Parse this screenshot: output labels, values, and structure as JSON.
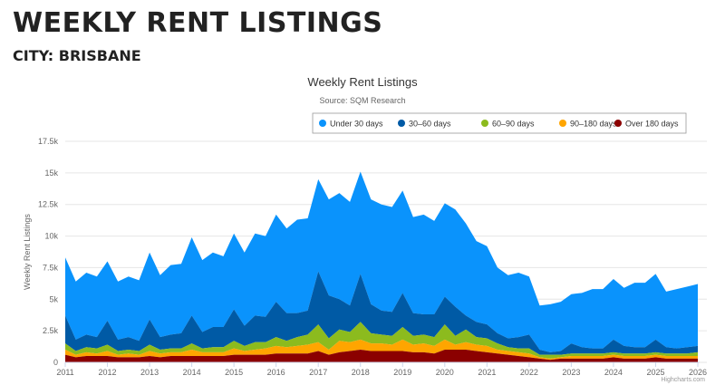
{
  "page": {
    "title": "WEEKLY RENT LISTINGS",
    "subtitle": "CITY: BRISBANE"
  },
  "chart_data": {
    "type": "area",
    "stacked": true,
    "title": "Weekly Rent Listings",
    "subtitle": "Source: SQM Research",
    "ylabel": "Weekly Rent Listings",
    "xlabel": "",
    "ylim": [
      0,
      17500
    ],
    "yticks": [
      "0",
      "2.5k",
      "5k",
      "7.5k",
      "10k",
      "12.5k",
      "15k",
      "17.5k"
    ],
    "xticks": [
      "2011",
      "2012",
      "2013",
      "2014",
      "2015",
      "2016",
      "2017",
      "2018",
      "2019",
      "2020",
      "2021",
      "2022",
      "2023",
      "2024",
      "2025",
      "2026"
    ],
    "xlim": [
      "2011-01-01",
      "2026-01-01"
    ],
    "grid": true,
    "legend_position": "top-right",
    "credits": "Highcharts.com",
    "x": [
      "2011-01",
      "2011-04",
      "2011-07",
      "2011-10",
      "2012-01",
      "2012-04",
      "2012-07",
      "2012-10",
      "2013-01",
      "2013-04",
      "2013-07",
      "2013-10",
      "2014-01",
      "2014-04",
      "2014-07",
      "2014-10",
      "2015-01",
      "2015-04",
      "2015-07",
      "2015-10",
      "2016-01",
      "2016-04",
      "2016-07",
      "2016-10",
      "2017-01",
      "2017-04",
      "2017-07",
      "2017-10",
      "2018-01",
      "2018-04",
      "2018-07",
      "2018-10",
      "2019-01",
      "2019-04",
      "2019-07",
      "2019-10",
      "2020-01",
      "2020-04",
      "2020-07",
      "2020-10",
      "2021-01",
      "2021-04",
      "2021-07",
      "2021-10",
      "2022-01",
      "2022-04",
      "2022-07",
      "2022-10",
      "2023-01",
      "2023-04",
      "2023-07",
      "2023-10",
      "2024-01",
      "2024-04",
      "2024-07",
      "2024-10",
      "2025-01",
      "2025-04",
      "2025-07",
      "2025-10",
      "2026-01"
    ],
    "series": [
      {
        "name": "Under 30 days",
        "color": "#0a93fc",
        "values": [
          4600,
          4600,
          4900,
          4800,
          4700,
          4600,
          4800,
          4800,
          5300,
          4900,
          5500,
          5500,
          6200,
          5700,
          5900,
          5600,
          6000,
          5800,
          6500,
          6400,
          6900,
          6700,
          7400,
          7300,
          7300,
          7600,
          8400,
          8200,
          8100,
          8300,
          8400,
          8300,
          8100,
          7600,
          7900,
          7400,
          7400,
          7700,
          7300,
          6400,
          6200,
          5200,
          5000,
          5100,
          4600,
          3500,
          3800,
          3900,
          3900,
          4300,
          4700,
          4700,
          4800,
          4600,
          5100,
          5100,
          5200,
          4400,
          4700,
          4800,
          4900
        ]
      },
      {
        "name": "30–60 days",
        "color": "#005aa5",
        "values": [
          2200,
          900,
          1000,
          900,
          1900,
          900,
          1000,
          800,
          2000,
          1000,
          1100,
          1200,
          2200,
          1300,
          1600,
          1600,
          2500,
          1600,
          2100,
          2000,
          2800,
          2200,
          1900,
          1900,
          4200,
          3400,
          2400,
          2100,
          3800,
          2300,
          1900,
          1900,
          2700,
          1800,
          1600,
          1800,
          2200,
          2300,
          1100,
          1200,
          1100,
          800,
          700,
          900,
          1100,
          400,
          200,
          300,
          800,
          500,
          400,
          400,
          1000,
          600,
          500,
          500,
          1000,
          500,
          400,
          500,
          500
        ]
      },
      {
        "name": "60–90 days",
        "color": "#8cbb1e",
        "values": [
          500,
          300,
          400,
          400,
          500,
          300,
          300,
          300,
          500,
          300,
          300,
          300,
          500,
          300,
          400,
          400,
          600,
          400,
          600,
          500,
          700,
          500,
          700,
          800,
          1400,
          900,
          900,
          800,
          1400,
          800,
          700,
          700,
          1000,
          700,
          700,
          700,
          1200,
          700,
          1000,
          600,
          600,
          500,
          300,
          300,
          400,
          200,
          300,
          200,
          200,
          200,
          200,
          200,
          200,
          200,
          200,
          200,
          200,
          200,
          200,
          200,
          300
        ]
      },
      {
        "name": "90–180 days",
        "color": "#ffa500",
        "values": [
          400,
          200,
          300,
          200,
          400,
          200,
          300,
          200,
          400,
          300,
          300,
          300,
          500,
          300,
          300,
          300,
          500,
          300,
          400,
          500,
          600,
          500,
          600,
          700,
          700,
          400,
          900,
          700,
          800,
          600,
          600,
          500,
          900,
          600,
          700,
          600,
          800,
          400,
          600,
          500,
          500,
          300,
          300,
          300,
          300,
          100,
          100,
          100,
          200,
          200,
          200,
          200,
          200,
          200,
          200,
          200,
          200,
          200,
          200,
          200,
          200
        ]
      },
      {
        "name": "Over 180 days",
        "color": "#8b0000",
        "values": [
          600,
          400,
          500,
          500,
          500,
          400,
          400,
          400,
          500,
          400,
          500,
          500,
          500,
          500,
          500,
          500,
          600,
          600,
          600,
          600,
          700,
          700,
          700,
          700,
          900,
          600,
          800,
          900,
          1000,
          900,
          900,
          900,
          900,
          800,
          800,
          700,
          1000,
          1000,
          1000,
          900,
          800,
          700,
          600,
          500,
          400,
          300,
          200,
          300,
          300,
          300,
          300,
          300,
          400,
          300,
          300,
          300,
          400,
          300,
          300,
          300,
          300
        ]
      }
    ]
  }
}
